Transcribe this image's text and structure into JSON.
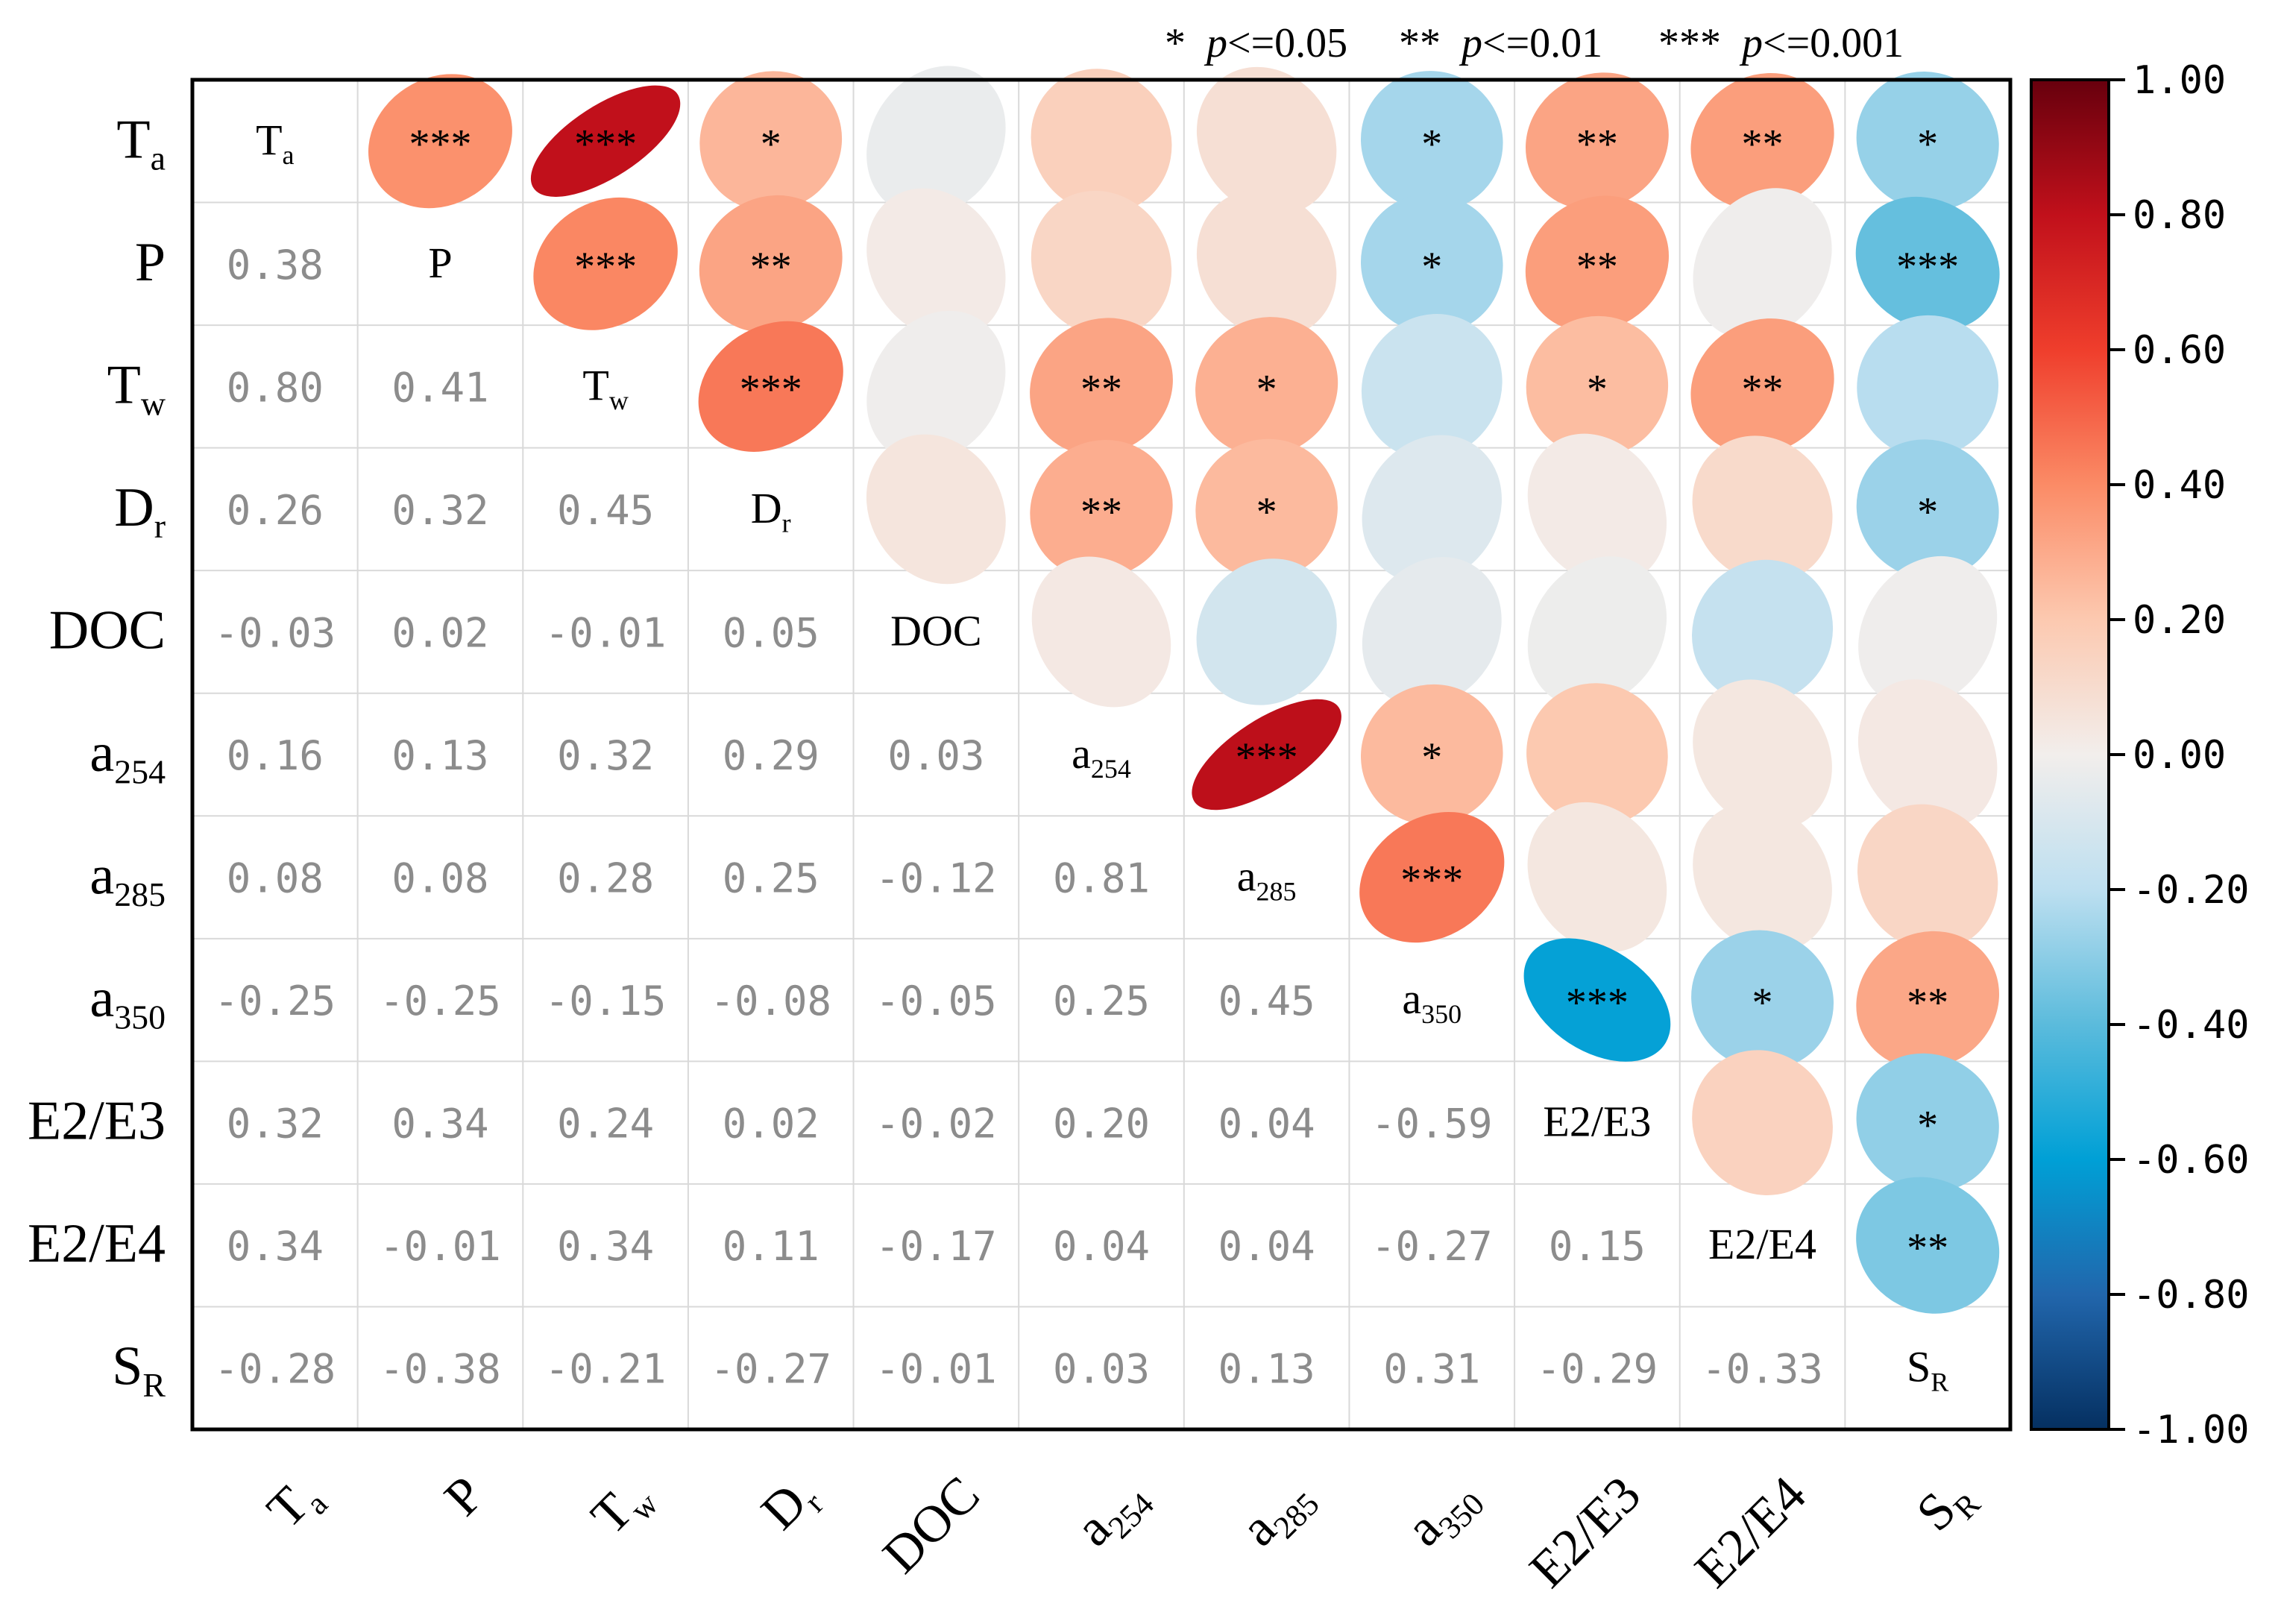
{
  "significance_legend": {
    "one_star": {
      "stars": "*",
      "p": "p",
      "rest": "<=0.05"
    },
    "two_star": {
      "stars": "**",
      "p": "p",
      "rest": "<=0.01"
    },
    "three_star": {
      "stars": "***",
      "p": "p",
      "rest": "<=0.001"
    }
  },
  "colorbar": {
    "ticks": [
      "1.00",
      "0.80",
      "0.60",
      "0.40",
      "0.20",
      "0.00",
      "-0.20",
      "-0.40",
      "-0.60",
      "-0.80",
      "-1.00"
    ],
    "tick_values": [
      1.0,
      0.8,
      0.6,
      0.4,
      0.2,
      0.0,
      -0.2,
      -0.4,
      -0.6,
      -0.8,
      -1.0
    ],
    "colormap": "RdBu_r",
    "stops": [
      {
        "v": -1.0,
        "c": "#053061"
      },
      {
        "v": -0.8,
        "c": "#2166ac"
      },
      {
        "v": -0.6,
        "c": "#00a0d6"
      },
      {
        "v": -0.4,
        "c": "#5bbbdc"
      },
      {
        "v": -0.2,
        "c": "#bddff0"
      },
      {
        "v": 0.0,
        "c": "#f2eeec"
      },
      {
        "v": 0.2,
        "c": "#fcc9b0"
      },
      {
        "v": 0.4,
        "c": "#fb8b66"
      },
      {
        "v": 0.6,
        "c": "#ef3e2c"
      },
      {
        "v": 0.8,
        "c": "#c1101b"
      },
      {
        "v": 1.0,
        "c": "#67000d"
      }
    ]
  },
  "chart_data": {
    "type": "heatmap",
    "variables": [
      {
        "base": "T",
        "sub": "a"
      },
      {
        "base": "P",
        "sub": ""
      },
      {
        "base": "T",
        "sub": "w"
      },
      {
        "base": "D",
        "sub": "r"
      },
      {
        "base": "DOC",
        "sub": ""
      },
      {
        "base": "a",
        "sub": "254"
      },
      {
        "base": "a",
        "sub": "285"
      },
      {
        "base": "a",
        "sub": "350"
      },
      {
        "base": "E2/E3",
        "sub": ""
      },
      {
        "base": "E2/E4",
        "sub": ""
      },
      {
        "base": "S",
        "sub": "R"
      }
    ],
    "lower_triangle_labels": [
      [],
      [
        "0.38"
      ],
      [
        "0.80",
        "0.41"
      ],
      [
        "0.26",
        "0.32",
        "0.45"
      ],
      [
        "-0.03",
        "0.02",
        "-0.01",
        "0.05"
      ],
      [
        "0.16",
        "0.13",
        "0.32",
        "0.29",
        "0.03"
      ],
      [
        "0.08",
        "0.08",
        "0.28",
        "0.25",
        "-0.12",
        "0.81"
      ],
      [
        "-0.25",
        "-0.25",
        "-0.15",
        "-0.08",
        "-0.05",
        "0.25",
        "0.45"
      ],
      [
        "0.32",
        "0.34",
        "0.24",
        "0.02",
        "-0.02",
        "0.20",
        "0.04",
        "-0.59"
      ],
      [
        "0.34",
        "-0.01",
        "0.34",
        "0.11",
        "-0.17",
        "0.04",
        "0.04",
        "-0.27",
        "0.15"
      ],
      [
        "-0.28",
        "-0.38",
        "-0.21",
        "-0.27",
        "-0.01",
        "0.03",
        "0.13",
        "0.31",
        "-0.29",
        "-0.33"
      ]
    ],
    "significance": [
      [
        "",
        "***",
        "***",
        "*",
        "",
        "",
        "",
        "*",
        "**",
        "**",
        "*"
      ],
      [
        "",
        "",
        "***",
        "**",
        "",
        "",
        "",
        "*",
        "**",
        "",
        "***"
      ],
      [
        "",
        "",
        "",
        "***",
        "",
        "**",
        "*",
        "",
        "*",
        "**",
        ""
      ],
      [
        "",
        "",
        "",
        "",
        "",
        "**",
        "*",
        "",
        "",
        "",
        "*"
      ],
      [
        "",
        "",
        "",
        "",
        "",
        "",
        "",
        "",
        "",
        "",
        ""
      ],
      [
        "",
        "",
        "",
        "",
        "",
        "",
        "***",
        "*",
        "",
        "",
        ""
      ],
      [
        "",
        "",
        "",
        "",
        "",
        "",
        "",
        "***",
        "",
        "",
        ""
      ],
      [
        "",
        "",
        "",
        "",
        "",
        "",
        "",
        "",
        "***",
        "*",
        "**"
      ],
      [
        "",
        "",
        "",
        "",
        "",
        "",
        "",
        "",
        "",
        "",
        "*"
      ],
      [
        "",
        "",
        "",
        "",
        "",
        "",
        "",
        "",
        "",
        "",
        "**"
      ],
      [
        "",
        "",
        "",
        "",
        "",
        "",
        "",
        "",
        "",
        "",
        ""
      ]
    ],
    "upper_triangle_ellipse_values": [
      [
        null,
        0.38,
        0.8,
        0.26,
        -0.03,
        0.16,
        0.08,
        -0.25,
        0.32,
        0.34,
        -0.28
      ],
      [
        null,
        null,
        0.41,
        0.32,
        0.02,
        0.13,
        0.08,
        -0.25,
        0.34,
        -0.01,
        -0.38
      ],
      [
        null,
        null,
        null,
        0.45,
        -0.01,
        0.32,
        0.28,
        -0.15,
        0.24,
        0.34,
        -0.21
      ],
      [
        null,
        null,
        null,
        null,
        0.05,
        0.29,
        0.25,
        -0.08,
        0.02,
        0.11,
        -0.27
      ],
      [
        null,
        null,
        null,
        null,
        null,
        0.03,
        -0.12,
        -0.05,
        -0.02,
        -0.17,
        -0.01
      ],
      [
        null,
        null,
        null,
        null,
        null,
        null,
        0.81,
        0.25,
        0.2,
        0.04,
        0.03
      ],
      [
        null,
        null,
        null,
        null,
        null,
        null,
        null,
        0.45,
        0.04,
        0.04,
        0.13
      ],
      [
        null,
        null,
        null,
        null,
        null,
        null,
        null,
        null,
        -0.59,
        -0.27,
        0.31
      ],
      [
        null,
        null,
        null,
        null,
        null,
        null,
        null,
        null,
        null,
        0.15,
        -0.29
      ],
      [
        null,
        null,
        null,
        null,
        null,
        null,
        null,
        null,
        null,
        null,
        -0.33
      ],
      [
        null,
        null,
        null,
        null,
        null,
        null,
        null,
        null,
        null,
        null,
        null
      ]
    ],
    "vmin": -1.0,
    "vmax": 1.0,
    "grid": true
  }
}
